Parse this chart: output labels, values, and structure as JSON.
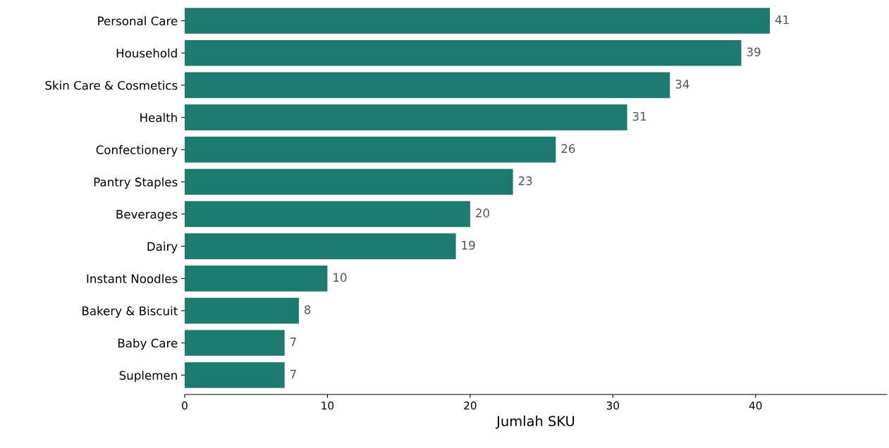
{
  "chart_data": {
    "type": "bar",
    "orientation": "horizontal",
    "xlabel": "Jumlah SKU",
    "categories": [
      "Personal Care",
      "Household",
      "Skin Care & Cosmetics",
      "Health",
      "Confectionery",
      "Pantry Staples",
      "Beverages",
      "Dairy",
      "Instant Noodles",
      "Bakery & Biscuit",
      "Baby Care",
      "Suplemen"
    ],
    "values": [
      41,
      39,
      34,
      31,
      26,
      23,
      20,
      19,
      10,
      8,
      7,
      7
    ],
    "color": "#1b7b6f",
    "xlim": [
      0,
      49.2
    ],
    "xticks": [
      0,
      10,
      20,
      30,
      40
    ],
    "data_labels": true,
    "grid": false,
    "legend": false
  }
}
